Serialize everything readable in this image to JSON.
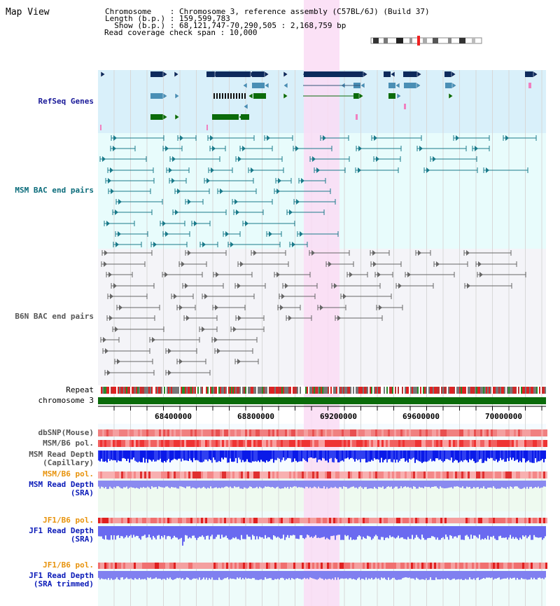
{
  "window": {
    "title": "Map View"
  },
  "info": {
    "chromosome": "Chromosome    : Chromosome 3, reference assembly (C57BL/6J) (Build 37)",
    "length": "Length (b.p.) : 159,599,783",
    "show": "  Show (b.p.) : 68,121,747-70,290,505 : 2,168,759 bp",
    "coverage": "Read coverage check span : 10,000"
  },
  "tracks": {
    "refseq": "RefSeq Genes",
    "msm_bac": "MSM BAC end pairs",
    "b6n_bac": "B6N BAC end pairs",
    "repeat": "Repeat",
    "chromosome": "chromosome 3",
    "dbsnp": "dbSNP(Mouse)",
    "msm_b6_pol_1": "MSM/B6 pol.",
    "msm_read_depth_cap_1": "MSM Read Depth",
    "msm_read_depth_cap_2": "(Capillary)",
    "msm_b6_pol_2": "MSM/B6 pol.",
    "msm_read_depth_sra_1": "MSM Read Depth",
    "msm_read_depth_sra_2": "(SRA)",
    "jf1_b6_pol_1": "JF1/B6 pol.",
    "jf1_read_depth_sra_1": "JF1 Read Depth",
    "jf1_read_depth_sra_2": "(SRA)",
    "jf1_b6_pol_2": "JF1/B6 pol.",
    "jf1_read_depth_trim_1": "JF1 Read Depth",
    "jf1_read_depth_trim_2": "(SRA trimmed)"
  },
  "axis": {
    "ticks": [
      "68400000",
      "68800000",
      "69200000",
      "69600000",
      "70000000"
    ]
  },
  "colors": {
    "refseq_bg": "#d9f0fa",
    "msm_bg": "#e8fcfc",
    "b6n_bg": "#f4f4f8",
    "highlight": "#fadcf5",
    "gene_navy": "#0d2a5c",
    "gene_lightblue": "#4a8fb5",
    "gene_green": "#0a6b0a",
    "chromosome_bar": "#0a6b0a"
  }
}
